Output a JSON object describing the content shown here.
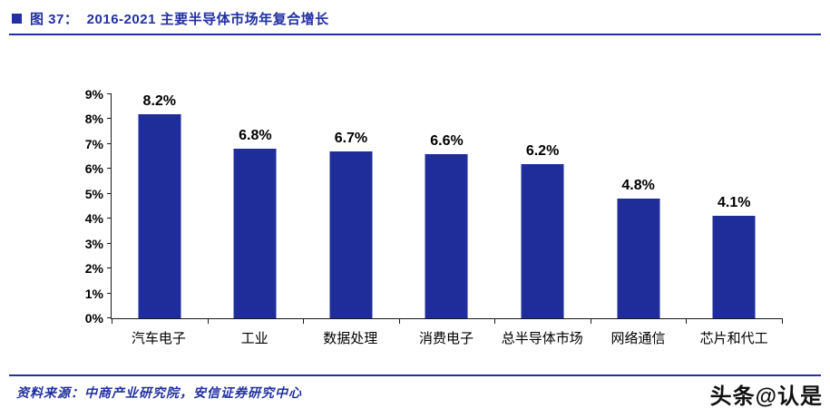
{
  "colors": {
    "accent": "#2230A2",
    "bar": "#1F2D9B",
    "axis": "#1a1a1a"
  },
  "header": {
    "title": "图 37：  2016-2021 主要半导体市场年复合增长"
  },
  "chart_data": {
    "type": "bar",
    "title": "2016-2021 主要半导体市场年复合增长",
    "categories": [
      "汽车电子",
      "工业",
      "数据处理",
      "消费电子",
      "总半导体市场",
      "网络通信",
      "芯片和代工"
    ],
    "values": [
      8.2,
      6.8,
      6.7,
      6.6,
      6.2,
      4.8,
      4.1
    ],
    "value_labels": [
      "8.2%",
      "6.8%",
      "6.7%",
      "6.6%",
      "6.2%",
      "4.8%",
      "4.1%"
    ],
    "xlabel": "",
    "ylabel": "",
    "ylim": [
      0,
      9
    ],
    "ytick_labels": [
      "0%",
      "1%",
      "2%",
      "3%",
      "4%",
      "5%",
      "6%",
      "7%",
      "8%",
      "9%"
    ],
    "grid": false,
    "legend": "none",
    "bar_color": "#1F2D9B"
  },
  "footer": {
    "source": "资料来源：中商产业研究院，安信证券研究中心"
  },
  "watermark": {
    "text": "头条@认是"
  }
}
